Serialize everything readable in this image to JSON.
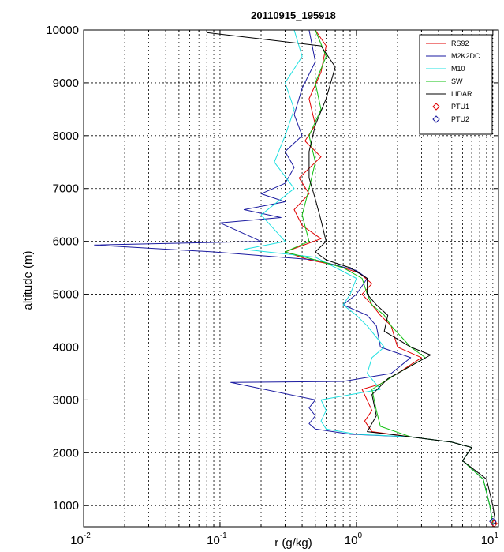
{
  "chart_data": {
    "type": "line",
    "title": "20110915_195918",
    "xlabel": "r (g/kg)",
    "ylabel": "altitude (m)",
    "xscale": "log",
    "xlim": [
      0.01,
      11
    ],
    "ylim": [
      600,
      10000
    ],
    "xticks": [
      {
        "value": 0.01,
        "base": "10",
        "exp": "-2"
      },
      {
        "value": 0.1,
        "base": "10",
        "exp": "-1"
      },
      {
        "value": 1,
        "base": "10",
        "exp": "0"
      },
      {
        "value": 10,
        "base": "10",
        "exp": "1"
      }
    ],
    "yticks": [
      1000,
      2000,
      3000,
      4000,
      5000,
      6000,
      7000,
      8000,
      9000,
      10000
    ],
    "grid": true,
    "legend_position": "top-right",
    "series": [
      {
        "name": "RS92",
        "color": "#e00000",
        "marker": "none",
        "points": [
          [
            10,
            650
          ],
          [
            9.5,
            1000
          ],
          [
            8.5,
            1500
          ],
          [
            6,
            1850
          ],
          [
            7,
            2100
          ],
          [
            5,
            2200
          ],
          [
            2.5,
            2300
          ],
          [
            1.3,
            2400
          ],
          [
            1.15,
            2600
          ],
          [
            1.3,
            2800
          ],
          [
            1.1,
            3200
          ],
          [
            1.5,
            3300
          ],
          [
            2,
            3500
          ],
          [
            3,
            3800
          ],
          [
            2,
            4000
          ],
          [
            1.8,
            4400
          ],
          [
            1.5,
            4600
          ],
          [
            1.3,
            4800
          ],
          [
            1.1,
            5000
          ],
          [
            1.3,
            5200
          ],
          [
            1.05,
            5400
          ],
          [
            0.7,
            5550
          ],
          [
            0.45,
            5650
          ],
          [
            0.3,
            5800
          ],
          [
            0.55,
            6050
          ],
          [
            0.4,
            6300
          ],
          [
            0.35,
            6600
          ],
          [
            0.45,
            6900
          ],
          [
            0.38,
            7200
          ],
          [
            0.55,
            7600
          ],
          [
            0.42,
            7900
          ],
          [
            0.5,
            8200
          ],
          [
            0.45,
            8700
          ],
          [
            0.55,
            9200
          ],
          [
            0.6,
            9700
          ],
          [
            0.5,
            10000
          ]
        ]
      },
      {
        "name": "M2K2DC",
        "color": "#1a1aa0",
        "marker": "none",
        "points": [
          [
            10,
            650
          ],
          [
            9.5,
            1000
          ],
          [
            8.5,
            1500
          ],
          [
            6,
            1850
          ],
          [
            7,
            2100
          ],
          [
            5,
            2200
          ],
          [
            2.5,
            2300
          ],
          [
            0.9,
            2350
          ],
          [
            0.5,
            2450
          ],
          [
            0.45,
            2550
          ],
          [
            0.5,
            2700
          ],
          [
            0.45,
            2850
          ],
          [
            0.5,
            3000
          ],
          [
            0.12,
            3330
          ],
          [
            0.8,
            3350
          ],
          [
            1.8,
            3500
          ],
          [
            2.5,
            3800
          ],
          [
            1.5,
            4000
          ],
          [
            1.4,
            4400
          ],
          [
            1.2,
            4600
          ],
          [
            0.8,
            4800
          ],
          [
            1,
            5000
          ],
          [
            1.2,
            5300
          ],
          [
            1,
            5450
          ],
          [
            0.5,
            5650
          ],
          [
            0.09,
            5800
          ],
          [
            0.012,
            5930
          ],
          [
            0.2,
            6000
          ],
          [
            0.1,
            6350
          ],
          [
            0.28,
            6450
          ],
          [
            0.15,
            6600
          ],
          [
            0.3,
            6750
          ],
          [
            0.2,
            6900
          ],
          [
            0.3,
            7100
          ],
          [
            0.35,
            7400
          ],
          [
            0.3,
            7700
          ],
          [
            0.4,
            8000
          ],
          [
            0.35,
            8400
          ],
          [
            0.4,
            8900
          ],
          [
            0.5,
            9400
          ],
          [
            0.45,
            10000
          ]
        ]
      },
      {
        "name": "M10",
        "color": "#20e0e0",
        "marker": "none",
        "points": [
          [
            10,
            650
          ],
          [
            9.5,
            1000
          ],
          [
            8.5,
            1500
          ],
          [
            6,
            1850
          ],
          [
            7,
            2100
          ],
          [
            5,
            2200
          ],
          [
            2.5,
            2300
          ],
          [
            1,
            2350
          ],
          [
            0.6,
            2450
          ],
          [
            0.55,
            2600
          ],
          [
            0.6,
            2800
          ],
          [
            0.55,
            3000
          ],
          [
            1.5,
            3200
          ],
          [
            1.2,
            3500
          ],
          [
            1.3,
            3800
          ],
          [
            1.6,
            4000
          ],
          [
            1.2,
            4400
          ],
          [
            1,
            4600
          ],
          [
            0.8,
            4800
          ],
          [
            0.9,
            5000
          ],
          [
            1,
            5300
          ],
          [
            0.5,
            5700
          ],
          [
            0.15,
            5850
          ],
          [
            0.3,
            6000
          ],
          [
            0.2,
            6500
          ],
          [
            0.35,
            7000
          ],
          [
            0.25,
            7500
          ],
          [
            0.3,
            8000
          ],
          [
            0.35,
            8500
          ],
          [
            0.3,
            9000
          ],
          [
            0.4,
            9500
          ],
          [
            0.35,
            10000
          ]
        ]
      },
      {
        "name": "SW",
        "color": "#10c010",
        "marker": "none",
        "points": [
          [
            10,
            650
          ],
          [
            9.5,
            1000
          ],
          [
            8.5,
            1500
          ],
          [
            6,
            1850
          ],
          [
            7,
            2100
          ],
          [
            5,
            2200
          ],
          [
            2.5,
            2300
          ],
          [
            1.5,
            2500
          ],
          [
            1.4,
            2800
          ],
          [
            1.3,
            3200
          ],
          [
            2,
            3500
          ],
          [
            3.2,
            3800
          ],
          [
            2.5,
            4000
          ],
          [
            1.8,
            4400
          ],
          [
            1.6,
            4600
          ],
          [
            1.3,
            4800
          ],
          [
            1.2,
            5000
          ],
          [
            1.1,
            5300
          ],
          [
            0.8,
            5500
          ],
          [
            0.5,
            5650
          ],
          [
            0.3,
            5800
          ],
          [
            0.45,
            6000
          ],
          [
            0.4,
            6500
          ],
          [
            0.45,
            7000
          ],
          [
            0.5,
            7500
          ],
          [
            0.45,
            8000
          ],
          [
            0.55,
            8500
          ],
          [
            0.5,
            9000
          ],
          [
            0.6,
            9500
          ],
          [
            0.5,
            10000
          ]
        ]
      },
      {
        "name": "LIDAR",
        "color": "#000000",
        "marker": "none",
        "points": [
          [
            10.5,
            650
          ],
          [
            10,
            1000
          ],
          [
            9,
            1500
          ],
          [
            6,
            1850
          ],
          [
            7,
            2100
          ],
          [
            5,
            2200
          ],
          [
            2.5,
            2300
          ],
          [
            1.2,
            2400
          ],
          [
            1.4,
            2700
          ],
          [
            1.3,
            3100
          ],
          [
            1.7,
            3400
          ],
          [
            3.5,
            3850
          ],
          [
            2.5,
            4000
          ],
          [
            1.6,
            4300
          ],
          [
            1.7,
            4600
          ],
          [
            1.4,
            4800
          ],
          [
            1.2,
            5000
          ],
          [
            1.2,
            5300
          ],
          [
            0.9,
            5500
          ],
          [
            0.6,
            5650
          ],
          [
            0.5,
            5800
          ],
          [
            0.6,
            6000
          ],
          [
            0.55,
            6400
          ],
          [
            0.5,
            6800
          ],
          [
            0.45,
            7200
          ],
          [
            0.45,
            7700
          ],
          [
            0.5,
            8200
          ],
          [
            0.6,
            8700
          ],
          [
            0.7,
            9300
          ],
          [
            0.55,
            9700
          ],
          [
            0.08,
            9950
          ]
        ]
      },
      {
        "name": "PTU1",
        "color": "#e00000",
        "marker": "diamond",
        "points": [
          [
            10.2,
            660
          ]
        ]
      },
      {
        "name": "PTU2",
        "color": "#1a1aa0",
        "marker": "diamond",
        "points": [
          [
            10,
            700
          ]
        ]
      }
    ]
  }
}
